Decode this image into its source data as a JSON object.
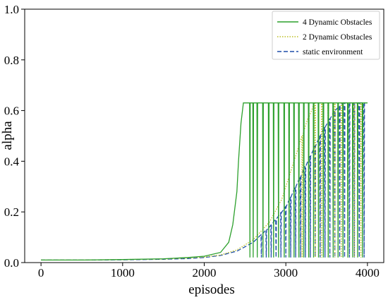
{
  "chart_data": {
    "type": "line",
    "xlabel": "episodes",
    "ylabel": "alpha",
    "xlim": [
      -200,
      4200
    ],
    "ylim": [
      0,
      1.0
    ],
    "x_ticks": [
      0,
      1000,
      2000,
      3000,
      4000
    ],
    "y_ticks": [
      0.0,
      0.2,
      0.4,
      0.6,
      0.8,
      1.0
    ],
    "x_tick_labels": [
      "0",
      "1000",
      "2000",
      "3000",
      "4000"
    ],
    "y_tick_labels": [
      "0.0",
      "0.2",
      "0.4",
      "0.6",
      "0.8",
      "1.0"
    ],
    "grid": false,
    "legend_position": "top-right",
    "series": [
      {
        "name": "4 Dynamic Obstacles",
        "color": "#2ca02c",
        "style": "solid",
        "points": [
          [
            0,
            0.01
          ],
          [
            500,
            0.01
          ],
          [
            1000,
            0.012
          ],
          [
            1500,
            0.015
          ],
          [
            1800,
            0.02
          ],
          [
            2000,
            0.025
          ],
          [
            2200,
            0.04
          ],
          [
            2300,
            0.08
          ],
          [
            2350,
            0.15
          ],
          [
            2400,
            0.28
          ],
          [
            2420,
            0.4
          ],
          [
            2450,
            0.55
          ],
          [
            2480,
            0.63
          ],
          [
            4000,
            0.63
          ]
        ],
        "drops": [
          2560,
          2600,
          2650,
          2720,
          2790,
          2850,
          2910,
          2980,
          3040,
          3100,
          3160,
          3220,
          3280,
          3340,
          3400,
          3460,
          3520,
          3580,
          3640,
          3700,
          3760,
          3820,
          3880,
          3940
        ]
      },
      {
        "name": "2 Dynamic Obstacles",
        "color": "#bcbd22",
        "style": "dotted",
        "points": [
          [
            0,
            0.01
          ],
          [
            500,
            0.01
          ],
          [
            1000,
            0.012
          ],
          [
            1500,
            0.014
          ],
          [
            1800,
            0.018
          ],
          [
            2000,
            0.022
          ],
          [
            2200,
            0.03
          ],
          [
            2400,
            0.05
          ],
          [
            2600,
            0.09
          ],
          [
            2800,
            0.16
          ],
          [
            2950,
            0.25
          ],
          [
            3050,
            0.35
          ],
          [
            3150,
            0.45
          ],
          [
            3250,
            0.55
          ],
          [
            3350,
            0.63
          ],
          [
            4000,
            0.63
          ]
        ],
        "drops": [
          3200,
          3280,
          3360,
          3440,
          3520,
          3600,
          3680,
          3760,
          3840,
          3920
        ]
      },
      {
        "name": "static environment",
        "color": "#1f4fa8",
        "style": "dashed",
        "points": [
          [
            0,
            0.01
          ],
          [
            500,
            0.01
          ],
          [
            1000,
            0.011
          ],
          [
            1500,
            0.013
          ],
          [
            1800,
            0.016
          ],
          [
            2000,
            0.02
          ],
          [
            2200,
            0.028
          ],
          [
            2400,
            0.045
          ],
          [
            2600,
            0.08
          ],
          [
            2800,
            0.14
          ],
          [
            3000,
            0.22
          ],
          [
            3150,
            0.32
          ],
          [
            3300,
            0.42
          ],
          [
            3450,
            0.52
          ],
          [
            3600,
            0.6
          ],
          [
            3700,
            0.63
          ],
          [
            4000,
            0.63
          ]
        ],
        "drops": [
          2700,
          2760,
          2820,
          2880,
          2940,
          3000,
          3060,
          3120,
          3180,
          3240,
          3300,
          3360,
          3420,
          3480,
          3540,
          3600,
          3660,
          3720,
          3780,
          3840,
          3900,
          3960
        ]
      }
    ]
  }
}
